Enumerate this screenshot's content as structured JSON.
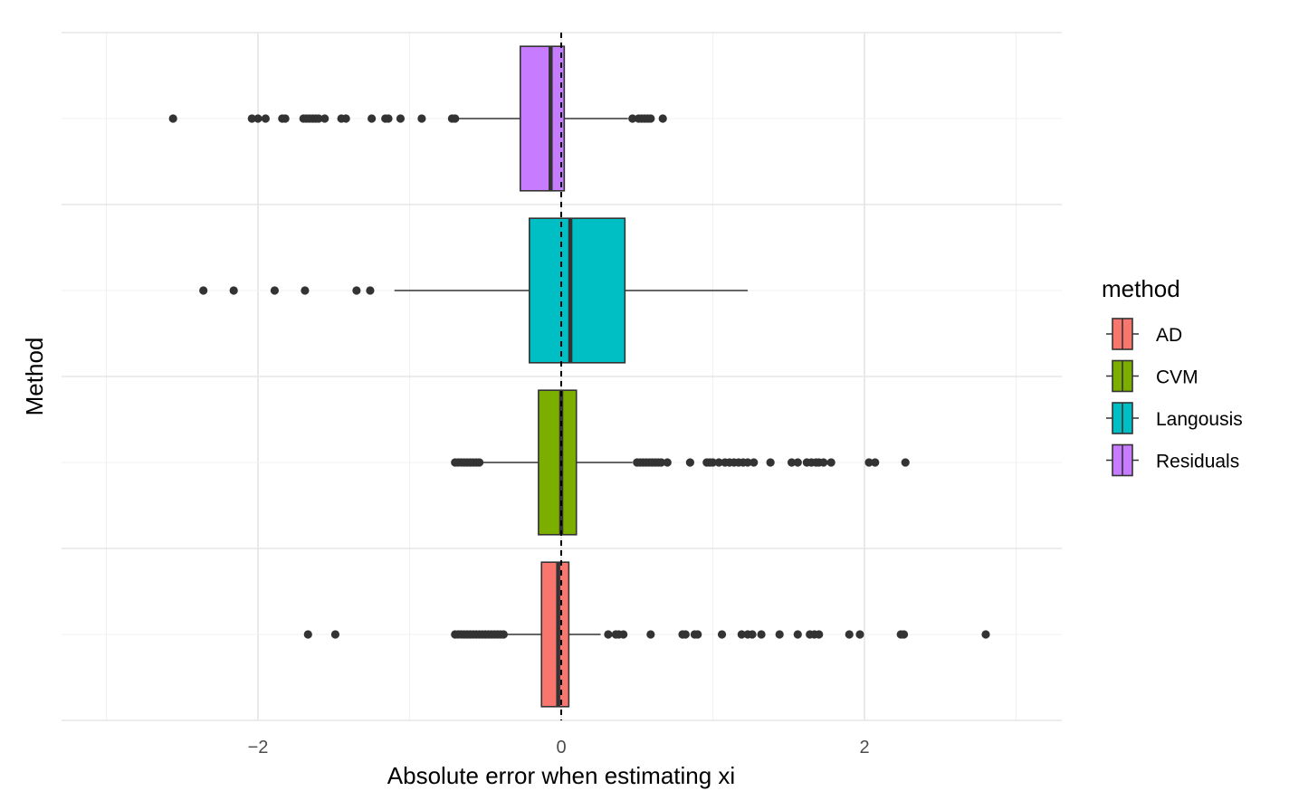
{
  "chart_data": {
    "type": "boxplot",
    "orientation": "horizontal",
    "xlabel": "Absolute error when estimating xi",
    "ylabel": "Method",
    "xlim": [
      -3.0,
      3.0
    ],
    "x_ticks": [
      -2,
      0,
      2
    ],
    "grid": true,
    "reference_line": {
      "x": 0,
      "style": "dashed"
    },
    "legend": {
      "title": "method",
      "placement": "right",
      "entries": [
        {
          "label": "AD",
          "color": "#F8766D"
        },
        {
          "label": "CVM",
          "color": "#7CAE00"
        },
        {
          "label": "Langousis",
          "color": "#00BFC4"
        },
        {
          "label": "Residuals",
          "color": "#C77CFF"
        }
      ]
    },
    "series": [
      {
        "name": "AD",
        "color": "#F8766D",
        "q1": -0.13,
        "median": -0.02,
        "q3": 0.05,
        "whisker_low": -0.36,
        "whisker_high": 0.26,
        "outliers": [
          -1.67,
          -1.49,
          -0.7,
          -0.68,
          -0.66,
          -0.64,
          -0.62,
          -0.6,
          -0.58,
          -0.56,
          -0.54,
          -0.52,
          -0.5,
          -0.48,
          -0.46,
          -0.44,
          -0.42,
          -0.4,
          -0.38,
          0.31,
          0.36,
          0.38,
          0.41,
          0.59,
          0.8,
          0.82,
          0.88,
          0.9,
          1.06,
          1.19,
          1.23,
          1.26,
          1.32,
          1.44,
          1.56,
          1.64,
          1.67,
          1.7,
          1.9,
          1.97,
          2.24,
          2.26,
          2.8
        ]
      },
      {
        "name": "CVM",
        "color": "#7CAE00",
        "q1": -0.15,
        "median": 0.0,
        "q3": 0.1,
        "whisker_low": -0.52,
        "whisker_high": 0.47,
        "outliers": [
          -0.7,
          -0.68,
          -0.66,
          -0.64,
          -0.62,
          -0.6,
          -0.58,
          -0.56,
          -0.54,
          0.5,
          0.52,
          0.54,
          0.56,
          0.58,
          0.6,
          0.62,
          0.64,
          0.66,
          0.7,
          0.85,
          0.96,
          0.98,
          1.0,
          1.04,
          1.08,
          1.11,
          1.14,
          1.17,
          1.2,
          1.23,
          1.27,
          1.38,
          1.52,
          1.56,
          1.62,
          1.65,
          1.68,
          1.7,
          1.73,
          1.78,
          2.03,
          2.07,
          2.27
        ]
      },
      {
        "name": "Langousis",
        "color": "#00BFC4",
        "q1": -0.21,
        "median": 0.06,
        "q3": 0.42,
        "whisker_low": -1.1,
        "whisker_high": 1.23,
        "outliers": [
          -2.36,
          -2.16,
          -1.89,
          -1.69,
          -1.35,
          -1.26
        ]
      },
      {
        "name": "Residuals",
        "color": "#C77CFF",
        "q1": -0.27,
        "median": -0.07,
        "q3": 0.02,
        "whisker_low": -0.69,
        "whisker_high": 0.44,
        "outliers": [
          -2.56,
          -2.04,
          -2.0,
          -1.95,
          -1.84,
          -1.82,
          -1.7,
          -1.68,
          -1.66,
          -1.64,
          -1.62,
          -1.6,
          -1.56,
          -1.45,
          -1.42,
          -1.25,
          -1.16,
          -1.14,
          -1.06,
          -0.92,
          -0.72,
          -0.7,
          0.47,
          0.51,
          0.53,
          0.55,
          0.57,
          0.59,
          0.67
        ]
      }
    ]
  }
}
